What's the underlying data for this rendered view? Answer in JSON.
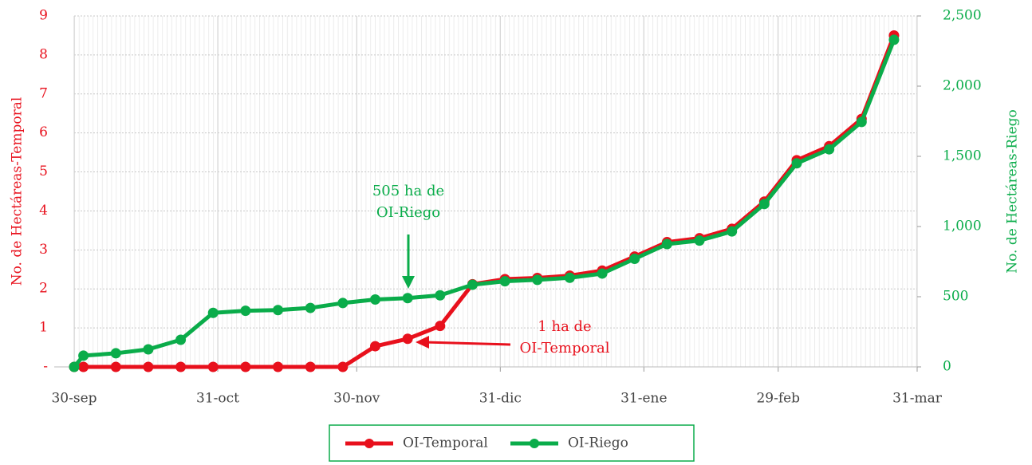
{
  "chart_data": {
    "type": "line",
    "y_label": "No. de Hectáreas-Temporal",
    "y2_label": "No. de Hectáreas-Riego",
    "x": [
      0,
      2,
      9,
      16,
      23,
      30,
      37,
      44,
      51,
      58,
      65,
      72,
      79,
      86,
      93,
      100,
      107,
      114,
      121,
      128,
      135,
      142,
      149,
      156,
      163,
      170,
      177
    ],
    "xlim": [
      0,
      182
    ],
    "xticks": [
      {
        "value": 0,
        "label": "30-sep"
      },
      {
        "value": 31,
        "label": "31-oct"
      },
      {
        "value": 61,
        "label": "30-nov"
      },
      {
        "value": 92,
        "label": "31-dic"
      },
      {
        "value": 123,
        "label": "31-ene"
      },
      {
        "value": 152,
        "label": "29-feb"
      },
      {
        "value": 182,
        "label": "31-mar"
      }
    ],
    "ylim": [
      0,
      9
    ],
    "yticks": [
      {
        "value": 0,
        "label": "-"
      },
      1,
      2,
      3,
      4,
      5,
      6,
      7,
      8,
      9
    ],
    "y2lim": [
      0,
      2500
    ],
    "y2ticks": [
      0,
      500,
      {
        "value": 1000,
        "label": "1,000"
      },
      {
        "value": 1500,
        "label": "1,500"
      },
      {
        "value": 2000,
        "label": "2,000"
      },
      {
        "value": 2500,
        "label": "2,500"
      }
    ],
    "grid": true,
    "legend": "bottom",
    "series": [
      {
        "name": "OI-Temporal",
        "color": "#e8101c",
        "axis": "y",
        "values": [
          0,
          0,
          0,
          0,
          0,
          0,
          0,
          0,
          0,
          0,
          0.53,
          0.72,
          1.05,
          2.12,
          2.25,
          2.28,
          2.34,
          2.47,
          2.83,
          3.2,
          3.3,
          3.54,
          4.24,
          5.3,
          5.66,
          6.36,
          8.5
        ]
      },
      {
        "name": "OI-Riego",
        "color": "#0aac4a",
        "axis": "y2",
        "values": [
          0,
          80,
          97,
          125,
          193,
          385,
          400,
          405,
          420,
          455,
          480,
          490,
          510,
          585,
          610,
          620,
          635,
          665,
          770,
          875,
          900,
          965,
          1160,
          1450,
          1550,
          1745,
          2330
        ]
      }
    ],
    "annotations": [
      {
        "lines": [
          "505 ha de",
          "OI-Riego"
        ],
        "color": "#0aac4a"
      },
      {
        "lines": [
          "1  ha de",
          "OI-Temporal"
        ],
        "color": "#e8101c"
      }
    ]
  }
}
